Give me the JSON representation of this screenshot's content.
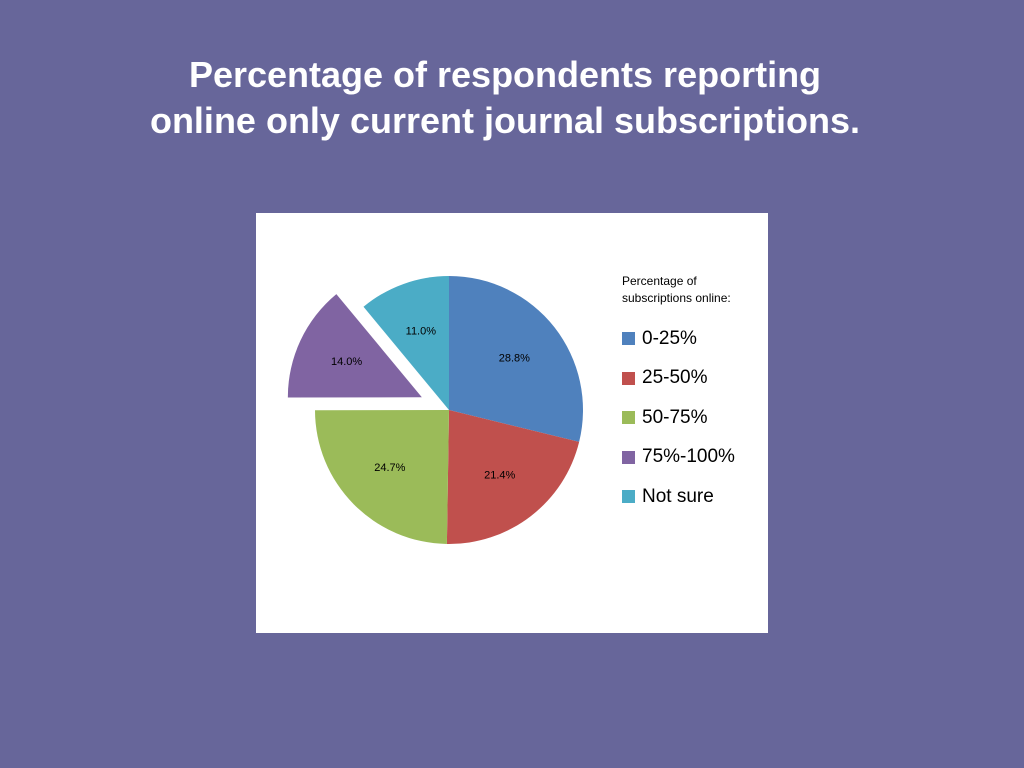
{
  "slide": {
    "background": "#67669a",
    "title_line1": "Percentage of respondents reporting",
    "title_line2": "online only current journal subscriptions."
  },
  "chart_data": {
    "type": "pie",
    "title": "",
    "legend_title": "Percentage of subscriptions online:",
    "legend_position": "right",
    "slices": [
      {
        "label": "0-25%",
        "value": 28.8,
        "value_label": "28.8%",
        "color": "#4f81bd",
        "exploded": false
      },
      {
        "label": "25-50%",
        "value": 21.4,
        "value_label": "21.4%",
        "color": "#c0504d",
        "exploded": false
      },
      {
        "label": "50-75%",
        "value": 24.7,
        "value_label": "24.7%",
        "color": "#9bbb59",
        "exploded": false
      },
      {
        "label": "75%-100%",
        "value": 14.0,
        "value_label": "14.0%",
        "color": "#8064a2",
        "exploded": true
      },
      {
        "label": "Not sure",
        "value": 11.0,
        "value_label": "11.0%",
        "color": "#4bacc6",
        "exploded": false
      }
    ]
  }
}
